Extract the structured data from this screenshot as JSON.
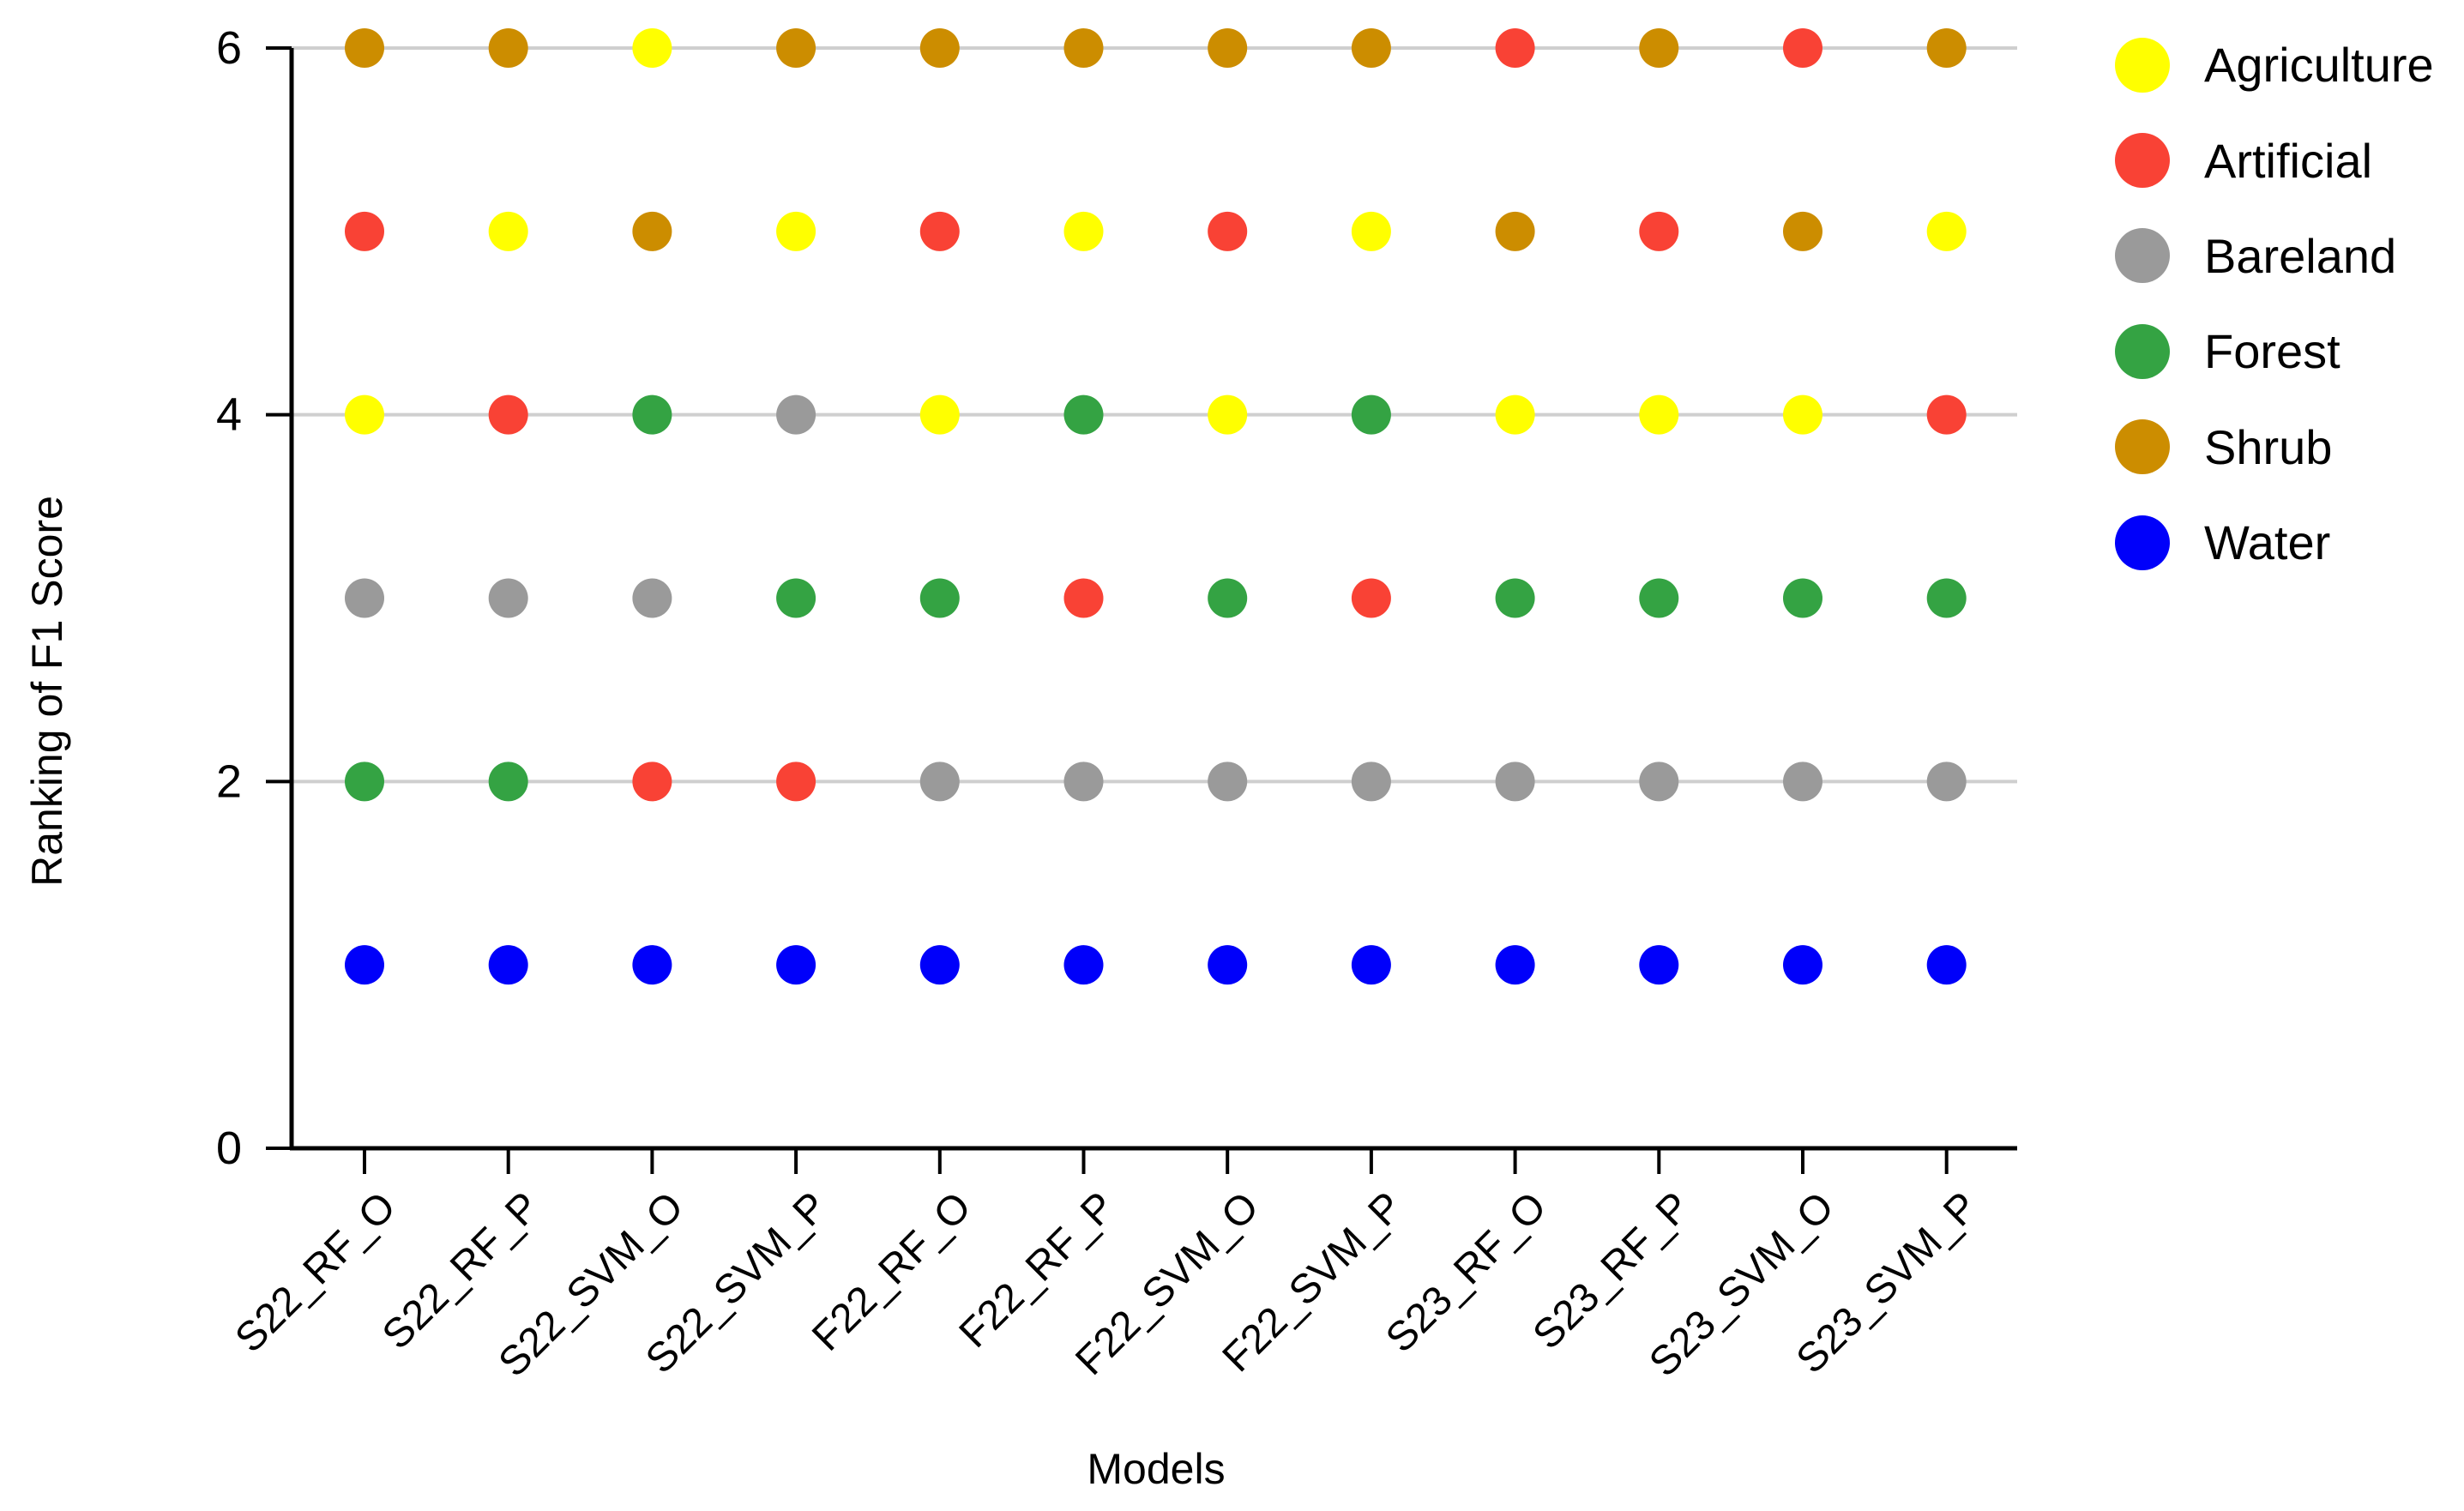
{
  "chart_data": {
    "type": "scatter",
    "title": "",
    "xlabel": "Models",
    "ylabel": "Ranking of F1 Score",
    "categories": [
      "S22_RF_O",
      "S22_RF_P",
      "S22_SVM_O",
      "S22_SVM_P",
      "F22_RF_O",
      "F22_RF_P",
      "F22_SVM_O",
      "F22_SVM_P",
      "S23_RF_O",
      "S23_RF_P",
      "S23_SVM_O",
      "S23_SVM_P"
    ],
    "ylim": [
      0,
      6
    ],
    "yticks": [
      "0",
      "2",
      "4",
      "6"
    ],
    "grid": true,
    "legend_position": "top-right",
    "series": [
      {
        "name": "Agriculture",
        "color": "#ffff00",
        "values": [
          4,
          5,
          6,
          5,
          4,
          5,
          4,
          5,
          4,
          4,
          4,
          5
        ]
      },
      {
        "name": "Artificial",
        "color": "#f94235",
        "values": [
          5,
          4,
          2,
          2,
          5,
          3,
          5,
          3,
          6,
          5,
          6,
          4
        ]
      },
      {
        "name": "Bareland",
        "color": "#9a9a9a",
        "values": [
          3,
          3,
          3,
          4,
          2,
          2,
          2,
          2,
          2,
          2,
          2,
          2
        ]
      },
      {
        "name": "Forest",
        "color": "#34a343",
        "values": [
          2,
          2,
          4,
          3,
          3,
          4,
          3,
          4,
          3,
          3,
          3,
          3
        ]
      },
      {
        "name": "Shrub",
        "color": "#cc8d00",
        "values": [
          6,
          6,
          5,
          6,
          6,
          6,
          6,
          6,
          5,
          6,
          5,
          6
        ]
      },
      {
        "name": "Water",
        "color": "#0000fa",
        "values": [
          1,
          1,
          1,
          1,
          1,
          1,
          1,
          1,
          1,
          1,
          1,
          1
        ]
      }
    ]
  }
}
